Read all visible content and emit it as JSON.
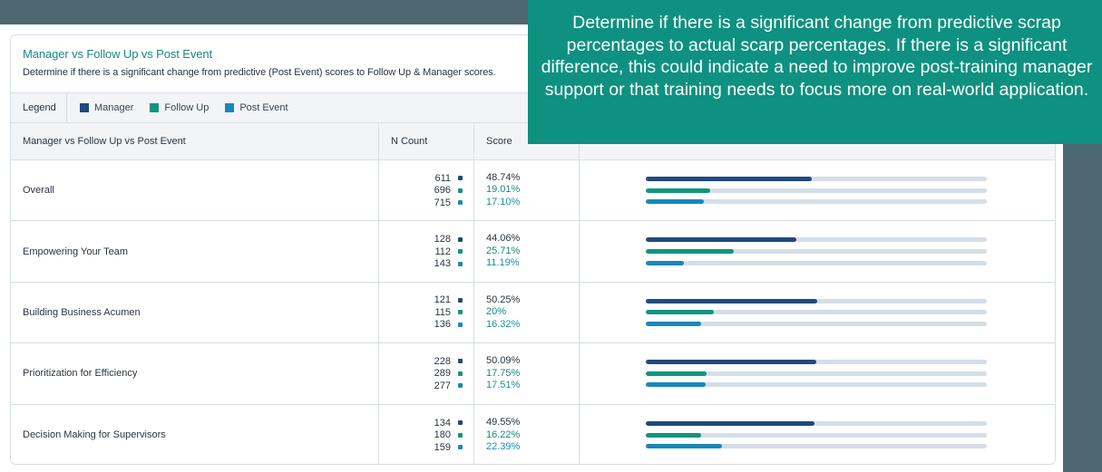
{
  "colors": {
    "manager": "#1f4a7c",
    "follow_up": "#11947f",
    "post_event": "#1a87bb",
    "track": "#d5dee6",
    "banner": "#4d6870",
    "callout_bg": "#0e9180"
  },
  "card": {
    "title": "Manager vs Follow Up vs Post Event",
    "subtitle": "Determine if there is a significant change from predictive (Post Event) scores to Follow Up & Manager scores."
  },
  "legend": {
    "label": "Legend",
    "items": [
      {
        "label": "Manager",
        "icon": "square-swatch"
      },
      {
        "label": "Follow Up",
        "icon": "square-swatch"
      },
      {
        "label": "Post Event",
        "icon": "square-swatch"
      }
    ]
  },
  "table": {
    "headers": {
      "name": "Manager vs Follow Up vs Post Event",
      "count": "N Count",
      "score": "Score"
    },
    "rows": [
      {
        "name": "Overall",
        "manager": {
          "n": "611",
          "score": "48.74%",
          "pct": 48.74
        },
        "follow_up": {
          "n": "696",
          "score": "19.01%",
          "pct": 19.01
        },
        "post_event": {
          "n": "715",
          "score": "17.10%",
          "pct": 17.1
        }
      },
      {
        "name": "Empowering Your Team",
        "manager": {
          "n": "128",
          "score": "44.06%",
          "pct": 44.06
        },
        "follow_up": {
          "n": "112",
          "score": "25.71%",
          "pct": 25.71
        },
        "post_event": {
          "n": "143",
          "score": "11.19%",
          "pct": 11.19
        }
      },
      {
        "name": "Building Business Acumen",
        "manager": {
          "n": "121",
          "score": "50.25%",
          "pct": 50.25
        },
        "follow_up": {
          "n": "115",
          "score": "20%",
          "pct": 20
        },
        "post_event": {
          "n": "136",
          "score": "16.32%",
          "pct": 16.32
        }
      },
      {
        "name": "Prioritization for Efficiency",
        "manager": {
          "n": "228",
          "score": "50.09%",
          "pct": 50.09
        },
        "follow_up": {
          "n": "289",
          "score": "17.75%",
          "pct": 17.75
        },
        "post_event": {
          "n": "277",
          "score": "17.51%",
          "pct": 17.51
        }
      },
      {
        "name": "Decision Making for Supervisors",
        "manager": {
          "n": "134",
          "score": "49.55%",
          "pct": 49.55
        },
        "follow_up": {
          "n": "180",
          "score": "16.22%",
          "pct": 16.22
        },
        "post_event": {
          "n": "159",
          "score": "22.39%",
          "pct": 22.39
        }
      }
    ]
  },
  "callout": {
    "text": "Determine if there is a significant change from predictive scrap percentages to actual scarp percentages. If there is a significant difference, this could indicate a need to improve post-training manager support or that training needs to focus more on real-world application."
  }
}
